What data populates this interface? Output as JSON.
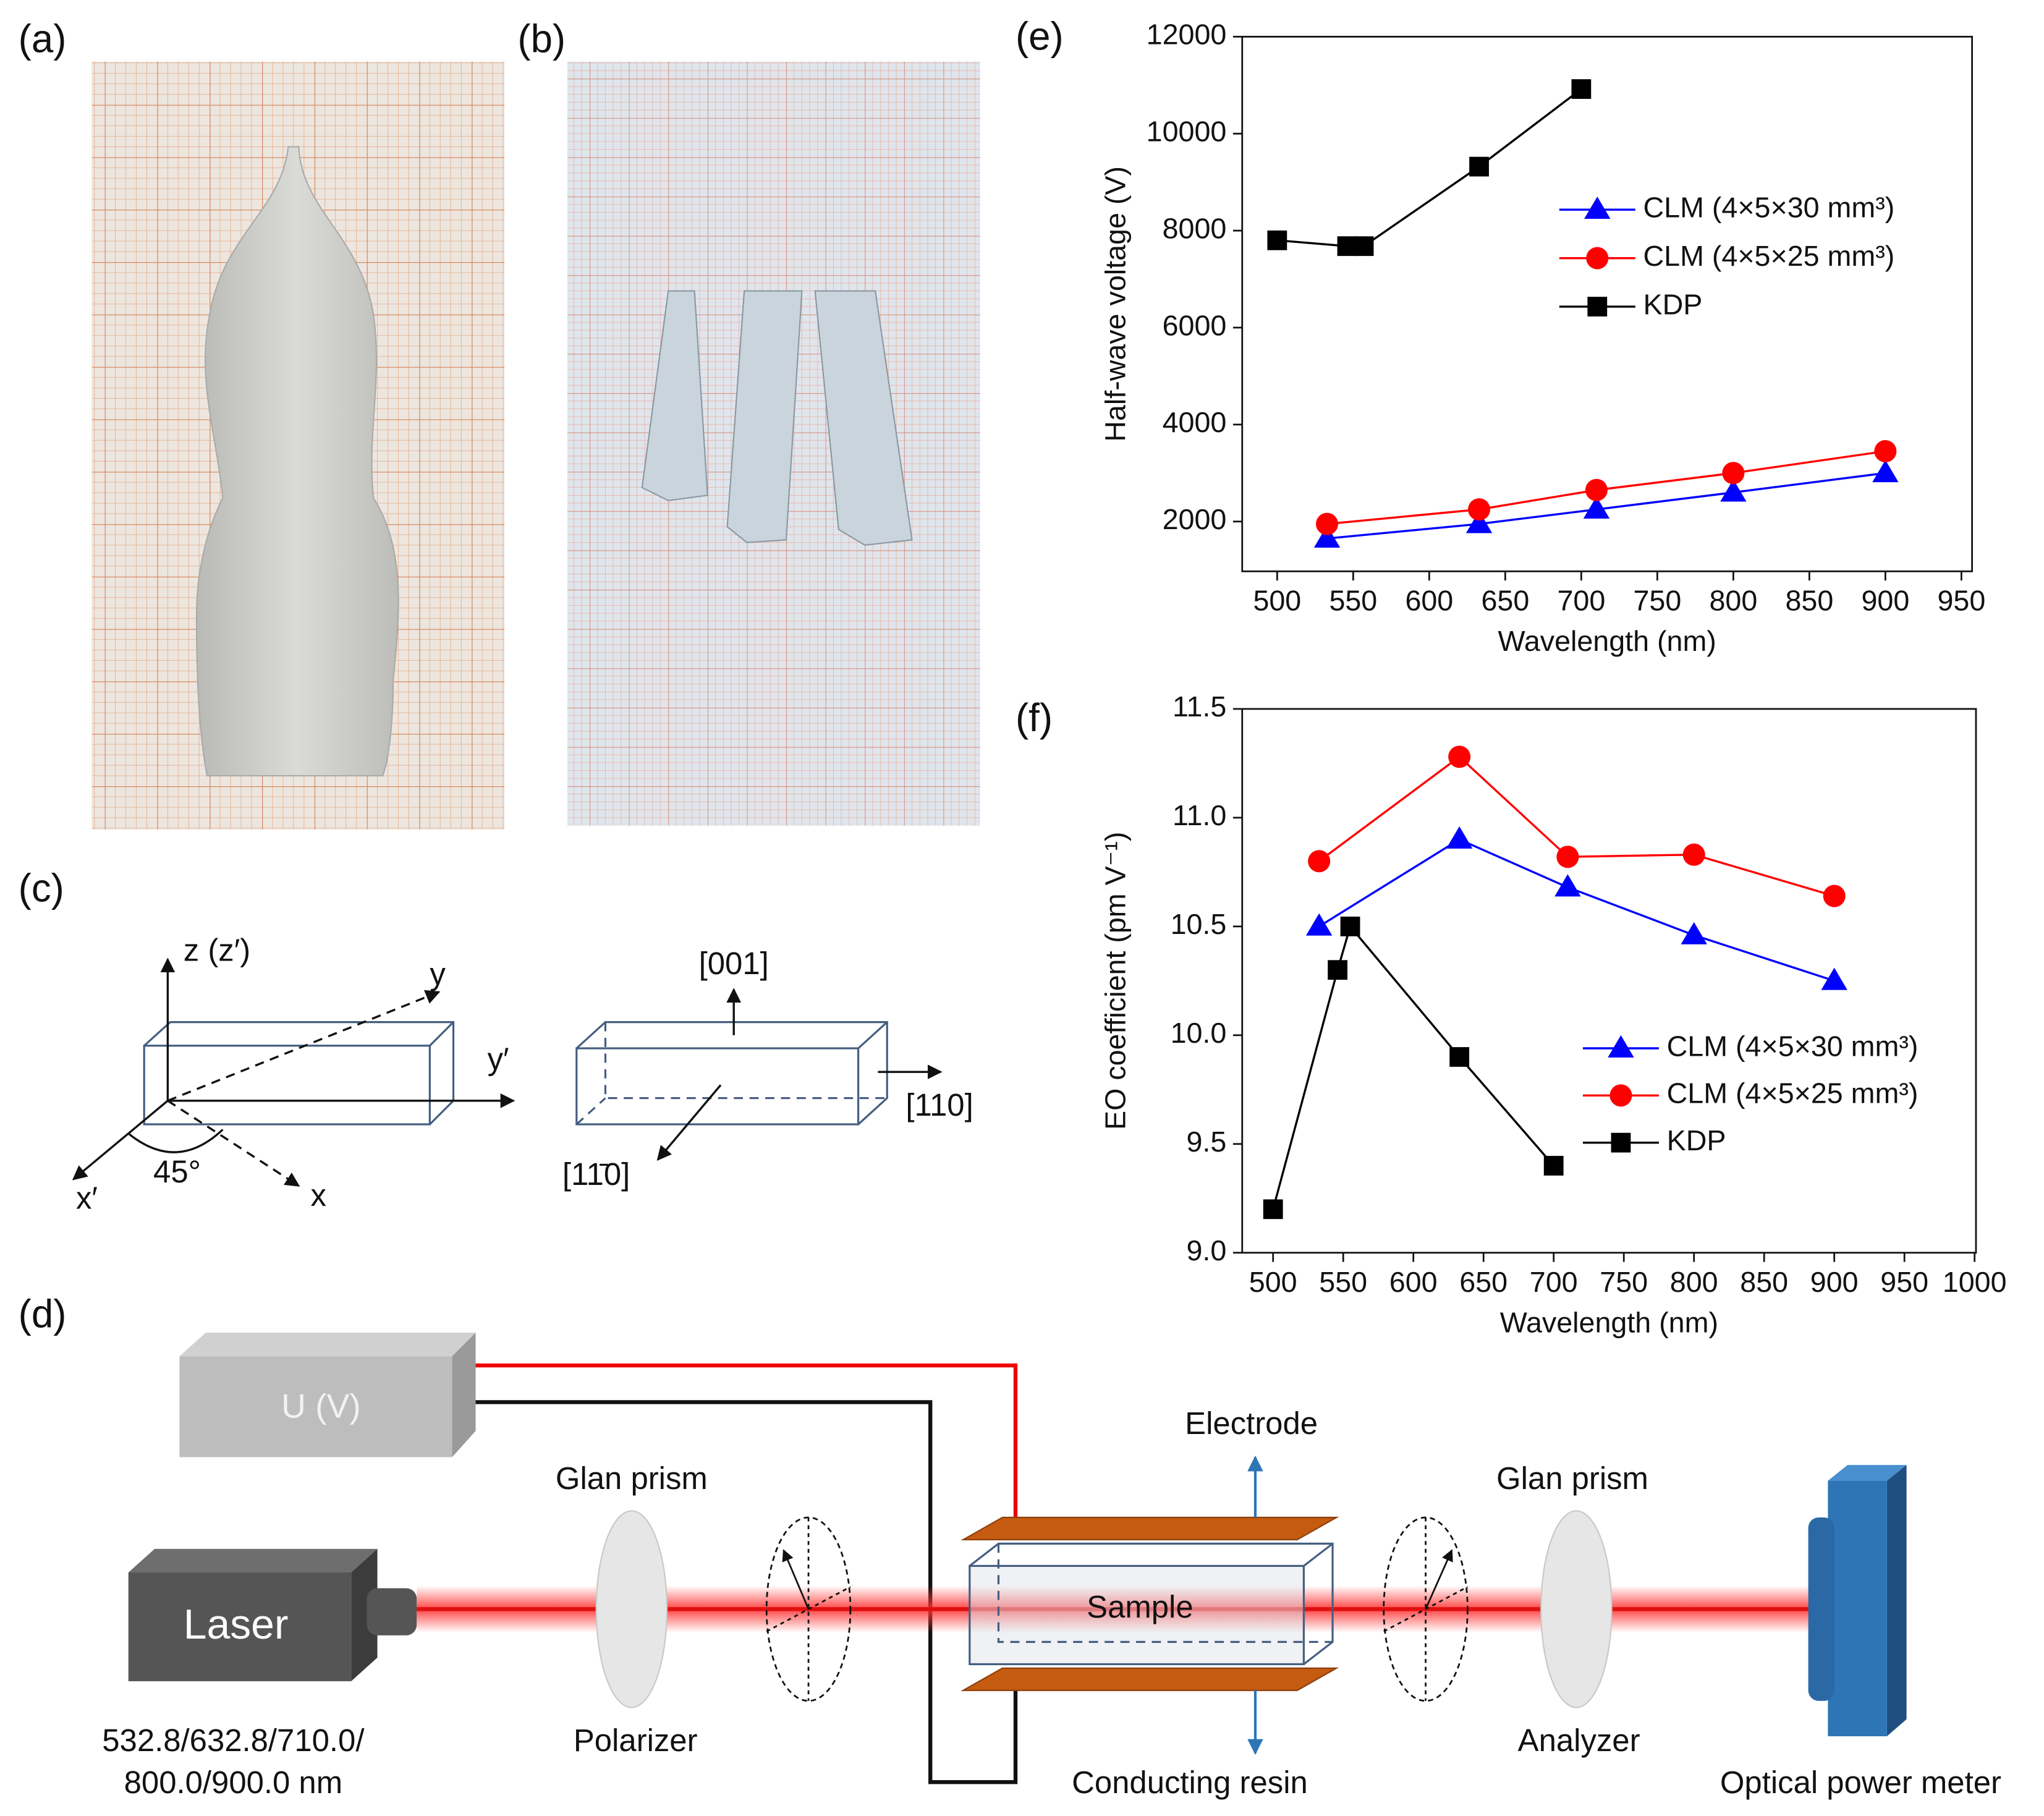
{
  "panel_labels": [
    "(a)",
    "(b)",
    "(c)",
    "(d)",
    "(e)",
    "(f)"
  ],
  "diagram_c": {
    "left_axes": [
      "z (z′)",
      "y",
      "y′",
      "x′",
      "45°",
      "x"
    ],
    "right_axes": [
      "[001]",
      "[110]",
      "[11̄0]"
    ]
  },
  "setup_d": {
    "voltage": "U (V)",
    "laser": "Laser",
    "wavelengths": [
      "532.8/632.8/710.0/",
      "800.0/900.0 nm"
    ],
    "glan_prism_1": "Glan prism",
    "polarizer": "Polarizer",
    "electrode": "Electrode",
    "sample": "Sample",
    "conducting_resin": "Conducting resin",
    "glan_prism_2": "Glan prism",
    "analyzer": "Analyzer",
    "power_meter": "Optical power meter"
  },
  "chart_data": [
    {
      "type": "line",
      "xlabel": "Wavelength (nm)",
      "ylabel": "Half-wave voltage (V)",
      "xlim": [
        477,
        957
      ],
      "xticks": [
        500,
        550,
        600,
        650,
        700,
        750,
        800,
        850,
        900,
        950
      ],
      "ylim": [
        973,
        12000
      ],
      "yticks": [
        2000,
        4000,
        6000,
        8000,
        10000,
        12000
      ],
      "series": [
        {
          "name": "CLM (4×5×30 mm³)",
          "color": "#0000ff",
          "marker": "triangle",
          "x": [
            532.8,
            632.8,
            710.0,
            800.0,
            900.0
          ],
          "values": [
            1650,
            1950,
            2250,
            2600,
            3000
          ]
        },
        {
          "name": "CLM (4×5×25 mm³)",
          "color": "#ff0000",
          "marker": "circle",
          "x": [
            532.8,
            632.8,
            710.0,
            800.0,
            900.0
          ],
          "values": [
            1950,
            2250,
            2650,
            3000,
            3450
          ]
        },
        {
          "name": "KDP",
          "color": "#000000",
          "marker": "square",
          "x": [
            500,
            546,
            557,
            632.8,
            700
          ],
          "values": [
            7800,
            7680,
            7680,
            9320,
            10920
          ]
        }
      ]
    },
    {
      "type": "line",
      "xlabel": "Wavelength (nm)",
      "ylabel": "EO coefficient (pm V⁻¹)",
      "xlim": [
        478,
        1001
      ],
      "xticks": [
        500,
        550,
        600,
        650,
        700,
        750,
        800,
        850,
        900,
        950,
        1000
      ],
      "ylim": [
        9.0,
        11.5
      ],
      "yticks": [
        {
          "value": 9,
          "label": "9.0"
        },
        9.5,
        {
          "value": 10,
          "label": "10.0"
        },
        10.5,
        {
          "value": 11,
          "label": "11.0"
        },
        11.5
      ],
      "series": [
        {
          "name": "CLM (4×5×30 mm³)",
          "color": "#0000ff",
          "marker": "triangle",
          "x": [
            532.8,
            632.8,
            710.0,
            800.0,
            900.0
          ],
          "values": [
            10.5,
            10.9,
            10.68,
            10.46,
            10.25
          ]
        },
        {
          "name": "CLM (4×5×25 mm³)",
          "color": "#ff0000",
          "marker": "circle",
          "x": [
            532.8,
            632.8,
            710.0,
            800.0,
            900.0
          ],
          "values": [
            10.8,
            11.28,
            10.82,
            10.83,
            10.64
          ]
        },
        {
          "name": "KDP",
          "color": "#000000",
          "marker": "square",
          "x": [
            500,
            546,
            555,
            632.8,
            700
          ],
          "values": [
            9.2,
            10.3,
            10.5,
            9.9,
            9.4
          ]
        }
      ]
    }
  ]
}
